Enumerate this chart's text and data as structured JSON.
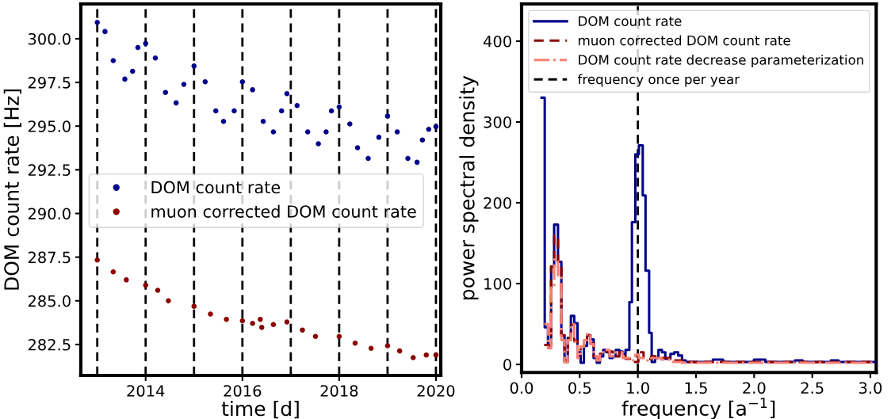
{
  "chart_data": [
    {
      "type": "scatter",
      "xlabel": "time [d]",
      "ylabel": "DOM count rate [Hz]",
      "marker": "circle",
      "legend": "center left",
      "grid": false,
      "xlim": [
        2012.66,
        2020.1
      ],
      "xticks": [
        2014,
        2016,
        2018,
        2020
      ],
      "ylim": [
        280.73,
        301.99
      ],
      "yticks": [
        {
          "value": 282.5,
          "label": "282.5"
        },
        {
          "value": 285.0,
          "label": "285.0"
        },
        {
          "value": 287.5,
          "label": "287.5"
        },
        {
          "value": 290.0,
          "label": "290.0"
        },
        {
          "value": 292.5,
          "label": "292.5"
        },
        {
          "value": 295.0,
          "label": "295.0"
        },
        {
          "value": 297.5,
          "label": "297.5"
        },
        {
          "value": 300.0,
          "label": "300.0"
        }
      ],
      "series": [
        {
          "name": "DOM count rate",
          "color": "#00008b",
          "x": [
            2013.0,
            2013.16,
            2013.33,
            2013.57,
            2013.73,
            2013.84,
            2014.0,
            2014.2,
            2014.41,
            2014.63,
            2014.79,
            2015.0,
            2015.23,
            2015.45,
            2015.61,
            2015.83,
            2016.0,
            2016.21,
            2016.43,
            2016.64,
            2016.81,
            2016.92,
            2017.13,
            2017.35,
            2017.57,
            2017.73,
            2017.84,
            2018.0,
            2018.22,
            2018.38,
            2018.6,
            2018.82,
            2019.0,
            2019.2,
            2019.42,
            2019.61,
            2019.72,
            2019.85,
            2020.0
          ],
          "values": [
            300.94,
            300.41,
            298.75,
            297.69,
            298.14,
            299.5,
            299.73,
            298.9,
            296.93,
            296.33,
            297.39,
            298.44,
            297.54,
            295.87,
            295.27,
            295.87,
            297.54,
            297.08,
            295.27,
            294.67,
            295.87,
            296.86,
            296.18,
            294.67,
            293.99,
            294.67,
            295.87,
            296.1,
            295.12,
            293.76,
            293.15,
            294.36,
            295.57,
            294.67,
            293.15,
            292.93,
            294.21,
            294.82,
            294.97
          ]
        },
        {
          "name": "muon corrected DOM count rate",
          "color": "#8b0000",
          "x": [
            2013.0,
            2013.33,
            2013.6,
            2014.0,
            2014.25,
            2014.47,
            2015.0,
            2015.34,
            2015.67,
            2016.0,
            2016.21,
            2016.4,
            2016.37,
            2016.64,
            2016.92,
            2017.24,
            2017.51,
            2018.0,
            2018.33,
            2018.66,
            2019.0,
            2019.25,
            2019.53,
            2019.8,
            2020.0
          ],
          "values": [
            287.34,
            286.66,
            286.2,
            285.9,
            285.6,
            285.0,
            284.69,
            284.24,
            283.94,
            283.86,
            283.71,
            283.48,
            283.94,
            283.64,
            283.79,
            283.33,
            282.96,
            282.96,
            282.58,
            282.28,
            282.43,
            282.13,
            281.75,
            281.9,
            281.9
          ]
        }
      ],
      "ref_lines": [
        {
          "axis": "x",
          "value": 2013,
          "color": "#000000",
          "line_style": "dashed"
        },
        {
          "axis": "x",
          "value": 2014,
          "color": "#000000",
          "line_style": "dashed"
        },
        {
          "axis": "x",
          "value": 2015,
          "color": "#000000",
          "line_style": "dashed"
        },
        {
          "axis": "x",
          "value": 2016,
          "color": "#000000",
          "line_style": "dashed"
        },
        {
          "axis": "x",
          "value": 2017,
          "color": "#000000",
          "line_style": "dashed"
        },
        {
          "axis": "x",
          "value": 2018,
          "color": "#000000",
          "line_style": "dashed"
        },
        {
          "axis": "x",
          "value": 2019,
          "color": "#000000",
          "line_style": "dashed"
        },
        {
          "axis": "x",
          "value": 2020,
          "color": "#000000",
          "line_style": "dashed"
        }
      ]
    },
    {
      "type": "step",
      "xlabel": "frequency [a$^{−1}$]",
      "ylabel": "power spectral density",
      "legend": "top right",
      "grid": false,
      "xlim": [
        0,
        3.05
      ],
      "xticks": [
        {
          "value": 0,
          "label": "0.0"
        },
        {
          "value": 0.5,
          "label": "0.5"
        },
        {
          "value": 1,
          "label": "1.0"
        },
        {
          "value": 1.5,
          "label": "1.5"
        },
        {
          "value": 2,
          "label": "2.0"
        },
        {
          "value": 2.5,
          "label": "2.5"
        },
        {
          "value": 3,
          "label": "3.0"
        }
      ],
      "ylim": [
        -10,
        446
      ],
      "yticks": [
        0,
        100,
        200,
        300,
        400
      ],
      "series": [
        {
          "name": "DOM count rate",
          "color": "#00008b",
          "line_style": "solid",
          "x": [
            0.172,
            0.199,
            0.227,
            0.254,
            0.28,
            0.313,
            0.342,
            0.369,
            0.397,
            0.424,
            0.453,
            0.481,
            0.508,
            0.536,
            0.563,
            0.592,
            0.62,
            0.647,
            0.673,
            0.702,
            0.729,
            0.757,
            0.784,
            0.81,
            0.841,
            0.868,
            0.894,
            0.927,
            0.949,
            0.978,
            1.009,
            1.042,
            1.066,
            1.097,
            1.119,
            1.148,
            1.177,
            1.207,
            1.236,
            1.28,
            1.313,
            1.347,
            1.38,
            1.413,
            1.645,
            1.733,
            1.998,
            2.097,
            2.351,
            2.417,
            2.66,
            2.726,
            3.05
          ],
          "values": [
            330,
            46,
            23,
            121,
            173,
            127,
            36,
            5,
            33,
            60,
            51,
            15,
            2,
            23,
            36,
            31,
            8,
            2,
            10,
            18,
            15,
            8,
            10,
            18,
            16,
            13,
            18,
            77,
            176,
            260,
            271,
            209,
            116,
            39,
            3,
            8,
            18,
            15,
            7,
            13,
            15,
            11,
            5,
            3,
            6,
            3,
            6,
            3,
            5,
            3,
            5,
            3,
            3
          ]
        },
        {
          "name": "muon corrected DOM count rate",
          "color": "#8b0000",
          "line_style": "dashed",
          "x": [
            0.194,
            0.254,
            0.28,
            0.313,
            0.342,
            0.369,
            0.397,
            0.424,
            0.453,
            0.481,
            0.508,
            0.536,
            0.563,
            0.592,
            0.62,
            0.647,
            0.673,
            0.729,
            0.784,
            0.841,
            0.894,
            0.949,
            1.004,
            1.049,
            1.115,
            1.203,
            1.291,
            1.38,
            3.05
          ],
          "values": [
            24,
            121,
            159,
            127,
            36,
            3,
            33,
            49,
            29,
            10,
            22,
            29,
            36,
            26,
            10,
            2,
            13,
            16,
            10,
            15,
            7,
            3,
            15,
            7,
            10,
            8,
            5,
            3,
            3
          ]
        },
        {
          "name": "DOM count rate decrease parameterization",
          "color": "#fa8072",
          "line_style": "dashdot",
          "x": [
            0.194,
            0.227,
            0.254,
            0.28,
            0.313,
            0.342,
            0.369,
            0.397,
            0.424,
            0.453,
            0.481,
            0.508,
            0.536,
            0.563,
            0.592,
            0.62,
            0.647,
            0.673,
            0.729,
            0.757,
            0.81,
            0.868,
            0.927,
            0.978,
            1.009,
            1.049,
            1.115,
            1.203,
            1.291,
            1.38,
            3.05
          ],
          "values": [
            50,
            20,
            95,
            130,
            110,
            30,
            3,
            30,
            50,
            28,
            8,
            22,
            30,
            38,
            25,
            10,
            5,
            15,
            18,
            10,
            15,
            8,
            5,
            12,
            8,
            5,
            8,
            6,
            3,
            2,
            2
          ]
        }
      ],
      "ref_lines": [
        {
          "axis": "x",
          "value": 1.0,
          "label": "frequency once per year",
          "color": "#000000",
          "line_style": "dashed"
        }
      ]
    }
  ]
}
